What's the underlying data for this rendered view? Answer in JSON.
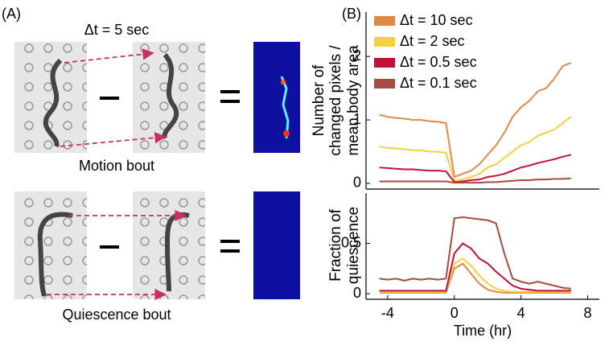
{
  "panel_a": {
    "label": "(A)",
    "title": "Δt = 5 sec",
    "rows": [
      {
        "caption": "Motion bout"
      },
      {
        "caption": "Quiescence bout"
      }
    ]
  },
  "panel_b_label": "(B)",
  "chart_data": [
    {
      "type": "line",
      "ylabel": [
        "Number of",
        "changed pixels /",
        "mean body area"
      ],
      "x": [
        -4.5,
        -4,
        -3.5,
        -3,
        -2.5,
        -2,
        -1.5,
        -1,
        -0.5,
        0,
        0.5,
        1,
        1.5,
        2,
        2.5,
        3,
        3.5,
        4,
        4.5,
        5,
        5.5,
        6,
        6.5,
        7
      ],
      "xlim": [
        -5.3,
        8.7
      ],
      "ylim": [
        -0.09,
        2.7
      ],
      "yticks": [
        0,
        1,
        2
      ],
      "legend": "upper-left",
      "series": [
        {
          "name": "Δt = 10 sec",
          "color": "#e08a4a",
          "values": [
            1.08,
            1.05,
            1.03,
            1.02,
            1.0,
            1.0,
            0.98,
            0.97,
            0.95,
            0.1,
            0.15,
            0.2,
            0.3,
            0.45,
            0.6,
            0.8,
            1.05,
            1.2,
            1.3,
            1.45,
            1.5,
            1.65,
            1.85,
            1.9
          ]
        },
        {
          "name": "Δt = 2 sec",
          "color": "#f5d040",
          "values": [
            0.58,
            0.56,
            0.55,
            0.54,
            0.52,
            0.52,
            0.5,
            0.5,
            0.48,
            0.05,
            0.06,
            0.1,
            0.15,
            0.25,
            0.3,
            0.4,
            0.5,
            0.6,
            0.65,
            0.75,
            0.8,
            0.85,
            0.95,
            1.05
          ]
        },
        {
          "name": "Δt = 0.5 sec",
          "color": "#c0103a",
          "values": [
            0.25,
            0.24,
            0.23,
            0.22,
            0.22,
            0.21,
            0.2,
            0.2,
            0.19,
            0.02,
            0.03,
            0.05,
            0.06,
            0.1,
            0.12,
            0.15,
            0.2,
            0.25,
            0.28,
            0.32,
            0.35,
            0.38,
            0.42,
            0.45
          ]
        },
        {
          "name": "Δt = 0.1 sec",
          "color": "#a84a40",
          "values": [
            0.03,
            0.03,
            0.03,
            0.03,
            0.03,
            0.03,
            0.03,
            0.03,
            0.03,
            0.01,
            0.01,
            0.01,
            0.01,
            0.02,
            0.02,
            0.03,
            0.04,
            0.05,
            0.05,
            0.06,
            0.06,
            0.07,
            0.07,
            0.08
          ]
        }
      ]
    },
    {
      "type": "line",
      "ylabel": [
        "Fraction of",
        "quiescence"
      ],
      "xlabel": "Time (hr)",
      "x": [
        -4.5,
        -4,
        -3.5,
        -3,
        -2.5,
        -2,
        -1.5,
        -1,
        -0.5,
        0,
        0.5,
        1,
        1.5,
        2,
        2.5,
        3,
        3.5,
        4,
        4.5,
        5,
        5.5,
        6,
        6.5,
        7
      ],
      "xlim": [
        -5.3,
        8.7
      ],
      "xticks": [
        -4,
        0,
        4,
        8
      ],
      "ylim": [
        -0.055,
        1.0
      ],
      "yticks": [
        0,
        0.5
      ],
      "series": [
        {
          "name": "Δt = 10 sec",
          "color": "#e08a4a",
          "values": [
            0.01,
            0.01,
            0.01,
            0.01,
            0.01,
            0.01,
            0.01,
            0.01,
            0.01,
            0.25,
            0.3,
            0.2,
            0.1,
            0.04,
            0.02,
            0.01,
            0.01,
            0.01,
            0.01,
            0.01,
            0.01,
            0.01,
            0.01,
            0.01
          ]
        },
        {
          "name": "Δt = 2 sec",
          "color": "#f5d040",
          "values": [
            0.02,
            0.02,
            0.02,
            0.02,
            0.02,
            0.02,
            0.02,
            0.02,
            0.02,
            0.3,
            0.35,
            0.28,
            0.18,
            0.1,
            0.05,
            0.03,
            0.02,
            0.02,
            0.02,
            0.02,
            0.02,
            0.02,
            0.02,
            0.02
          ]
        },
        {
          "name": "Δt = 0.5 sec",
          "color": "#c0103a",
          "values": [
            0.03,
            0.03,
            0.03,
            0.03,
            0.03,
            0.03,
            0.03,
            0.03,
            0.03,
            0.4,
            0.5,
            0.45,
            0.35,
            0.3,
            0.22,
            0.15,
            0.08,
            0.05,
            0.04,
            0.03,
            0.03,
            0.03,
            0.03,
            0.03
          ]
        },
        {
          "name": "Δt = 0.1 sec",
          "color": "#a84a40",
          "values": [
            0.15,
            0.14,
            0.15,
            0.13,
            0.15,
            0.14,
            0.15,
            0.14,
            0.15,
            0.75,
            0.76,
            0.75,
            0.74,
            0.73,
            0.7,
            0.4,
            0.15,
            0.12,
            0.1,
            0.12,
            0.1,
            0.08,
            0.06,
            0.05
          ]
        }
      ]
    }
  ]
}
